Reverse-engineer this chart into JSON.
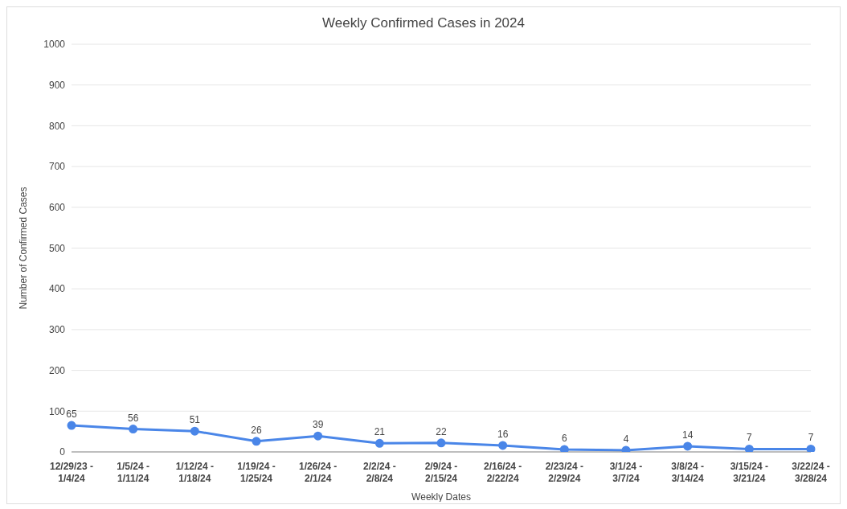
{
  "chart_data": {
    "type": "line",
    "title": "Weekly Confirmed Cases in 2024",
    "xlabel": "Weekly Dates",
    "ylabel": "Number of Confirmed Cases",
    "categories": [
      "12/29/23 - 1/4/24",
      "1/5/24 - 1/11/24",
      "1/12/24 - 1/18/24",
      "1/19/24 - 1/25/24",
      "1/26/24 - 2/1/24",
      "2/2/24 - 2/8/24",
      "2/9/24 - 2/15/24",
      "2/16/24 - 2/22/24",
      "2/23/24 - 2/29/24",
      "3/1/24 - 3/7/24",
      "3/8/24 - 3/14/24",
      "3/15/24 - 3/21/24",
      "3/22/24 - 3/28/24"
    ],
    "series": [
      {
        "color": "#4a86e8",
        "values": [
          65,
          56,
          51,
          26,
          39,
          21,
          22,
          16,
          6,
          4,
          14,
          7,
          7
        ]
      }
    ],
    "ylim": [
      0,
      1000
    ],
    "yticks": [
      0,
      100,
      200,
      300,
      400,
      500,
      600,
      700,
      800,
      900,
      1000
    ],
    "grid": "y",
    "marker": "circle",
    "line_style": "solid",
    "data_labels": true,
    "legend": false
  }
}
